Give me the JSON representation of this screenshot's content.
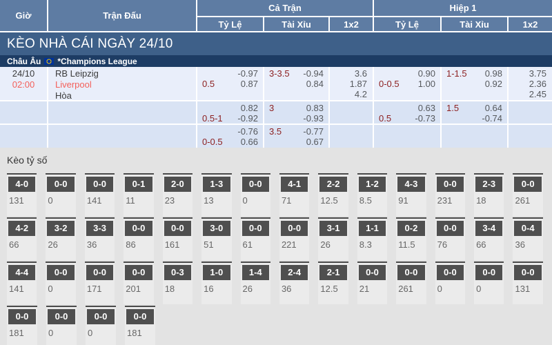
{
  "header": {
    "col_time": "Giờ",
    "col_match": "Trận Đấu",
    "group_full": "Cả Trận",
    "group_half": "Hiệp 1",
    "sub_cols": [
      "Tỷ Lệ",
      "Tài Xỉu",
      "1x2"
    ]
  },
  "banner": {
    "title": "KÈO NHÀ CÁI NGÀY 24/10"
  },
  "league": {
    "region": "Châu Âu",
    "flag_icon": "eu-flag-icon",
    "name": "*Champions League"
  },
  "odds_table": {
    "rows": [
      {
        "date": "24/10",
        "time": "02:00",
        "teams": [
          "RB Leipzig",
          "Liverpool",
          "Hòa"
        ],
        "full": {
          "hdp_label": "0.5",
          "hdp_top": "-0.97",
          "hdp_bottom": "0.87",
          "ou_label": "3-3.5",
          "ou_top": "-0.94",
          "ou_bottom": "0.84",
          "x12": [
            "3.6",
            "1.87",
            "4.2"
          ]
        },
        "half": {
          "hdp_label": "0-0.5",
          "hdp_top": "0.90",
          "hdp_bottom": "1.00",
          "ou_label": "1-1.5",
          "ou_top": "0.98",
          "ou_bottom": "0.92",
          "x12": [
            "3.75",
            "2.36",
            "2.45"
          ]
        }
      },
      {
        "date": "",
        "time": "",
        "teams": [],
        "full": {
          "hdp_label": "0.5-1",
          "hdp_top": "0.82",
          "hdp_bottom": "-0.92",
          "ou_label": "3",
          "ou_top": "0.83",
          "ou_bottom": "-0.93",
          "x12": []
        },
        "half": {
          "hdp_label": "0.5",
          "hdp_top": "0.63",
          "hdp_bottom": "-0.73",
          "ou_label": "1.5",
          "ou_top": "0.64",
          "ou_bottom": "-0.74",
          "x12": []
        }
      },
      {
        "date": "",
        "time": "",
        "teams": [],
        "full": {
          "hdp_label": "0-0.5",
          "hdp_top": "-0.76",
          "hdp_bottom": "0.66",
          "ou_label": "3.5",
          "ou_top": "-0.77",
          "ou_bottom": "0.67",
          "x12": []
        },
        "half": null
      }
    ]
  },
  "score_section": {
    "title": "Kèo tỷ số",
    "rows": [
      [
        {
          "score": "4-0",
          "value": "131"
        },
        {
          "score": "0-0",
          "value": "0"
        },
        {
          "score": "0-0",
          "value": "141"
        },
        {
          "score": "0-1",
          "value": "11"
        },
        {
          "score": "2-0",
          "value": "23"
        },
        {
          "score": "1-3",
          "value": "13"
        },
        {
          "score": "0-0",
          "value": "0"
        },
        {
          "score": "4-1",
          "value": "71"
        },
        {
          "score": "2-2",
          "value": "12.5"
        },
        {
          "score": "1-2",
          "value": "8.5"
        },
        {
          "score": "4-3",
          "value": "91"
        },
        {
          "score": "0-0",
          "value": "231"
        },
        {
          "score": "2-3",
          "value": "18"
        },
        {
          "score": "0-0",
          "value": "261"
        }
      ],
      [
        {
          "score": "4-2",
          "value": "66"
        },
        {
          "score": "3-2",
          "value": "26"
        },
        {
          "score": "3-3",
          "value": "36"
        },
        {
          "score": "0-0",
          "value": "86"
        },
        {
          "score": "0-0",
          "value": "161"
        },
        {
          "score": "3-0",
          "value": "51"
        },
        {
          "score": "0-0",
          "value": "61"
        },
        {
          "score": "0-0",
          "value": "221"
        },
        {
          "score": "3-1",
          "value": "26"
        },
        {
          "score": "1-1",
          "value": "8.3"
        },
        {
          "score": "0-2",
          "value": "11.5"
        },
        {
          "score": "0-0",
          "value": "76"
        },
        {
          "score": "3-4",
          "value": "66"
        },
        {
          "score": "0-4",
          "value": "36"
        }
      ],
      [
        {
          "score": "4-4",
          "value": "141"
        },
        {
          "score": "0-0",
          "value": "0"
        },
        {
          "score": "0-0",
          "value": "171"
        },
        {
          "score": "0-0",
          "value": "201"
        },
        {
          "score": "0-3",
          "value": "18"
        },
        {
          "score": "1-0",
          "value": "16"
        },
        {
          "score": "1-4",
          "value": "26"
        },
        {
          "score": "2-4",
          "value": "36"
        },
        {
          "score": "2-1",
          "value": "12.5"
        },
        {
          "score": "0-0",
          "value": "21"
        },
        {
          "score": "0-0",
          "value": "261"
        },
        {
          "score": "0-0",
          "value": "0"
        },
        {
          "score": "0-0",
          "value": "0"
        },
        {
          "score": "0-0",
          "value": "131"
        }
      ],
      [
        {
          "score": "0-0",
          "value": "181"
        },
        {
          "score": "0-0",
          "value": "0"
        },
        {
          "score": "0-0",
          "value": "0"
        },
        {
          "score": "0-0",
          "value": "181"
        }
      ]
    ]
  }
}
